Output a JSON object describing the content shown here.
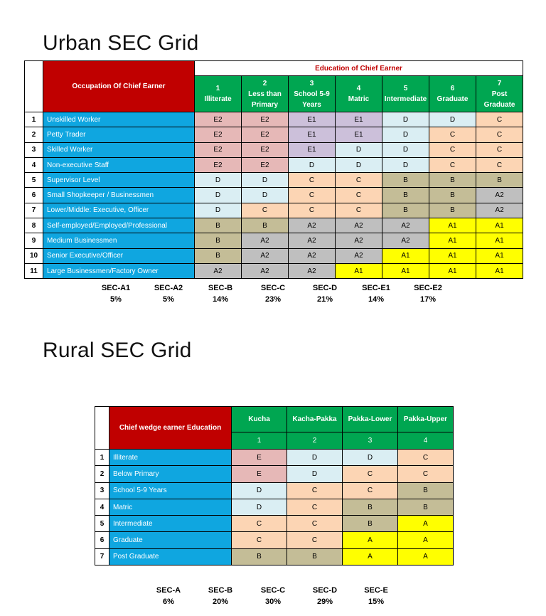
{
  "urban": {
    "title": "Urban SEC Grid",
    "occupation_header": "Occupation Of Chief Earner",
    "education_header": "Education of Chief Earner",
    "education_columns": [
      {
        "num": "1",
        "label": "Illiterate"
      },
      {
        "num": "2",
        "label": "Less than Primary"
      },
      {
        "num": "3",
        "label": "School 5-9 Years"
      },
      {
        "num": "4",
        "label": "Matric"
      },
      {
        "num": "5",
        "label": "Intermediate"
      },
      {
        "num": "6",
        "label": "Graduate"
      },
      {
        "num": "7",
        "label": "Post Graduate"
      }
    ],
    "rows": [
      {
        "num": "1",
        "occupation": "Unskilled Worker",
        "cells": [
          "E2",
          "E2",
          "E1",
          "E1",
          "D",
          "D",
          "C"
        ]
      },
      {
        "num": "2",
        "occupation": "Petty Trader",
        "cells": [
          "E2",
          "E2",
          "E1",
          "E1",
          "D",
          "C",
          "C"
        ]
      },
      {
        "num": "3",
        "occupation": "Skilled Worker",
        "cells": [
          "E2",
          "E2",
          "E1",
          "D",
          "D",
          "C",
          "C"
        ]
      },
      {
        "num": "4",
        "occupation": "Non-executive Staff",
        "cells": [
          "E2",
          "E2",
          "D",
          "D",
          "D",
          "C",
          "C"
        ]
      },
      {
        "num": "5",
        "occupation": "Supervisor Level",
        "cells": [
          "D",
          "D",
          "C",
          "C",
          "B",
          "B",
          "B"
        ]
      },
      {
        "num": "6",
        "occupation": "Small Shopkeeper / Businessmen",
        "cells": [
          "D",
          "D",
          "C",
          "C",
          "B",
          "B",
          "A2"
        ]
      },
      {
        "num": "7",
        "occupation": "Lower/Middle: Executive, Officer",
        "cells": [
          "D",
          "C",
          "C",
          "C",
          "B",
          "B",
          "A2"
        ]
      },
      {
        "num": "8",
        "occupation": "Self-employed/Employed/Professional",
        "cells": [
          "B",
          "B",
          "A2",
          "A2",
          "A2",
          "A1",
          "A1"
        ]
      },
      {
        "num": "9",
        "occupation": "Medium Businessmen",
        "cells": [
          "B",
          "A2",
          "A2",
          "A2",
          "A2",
          "A1",
          "A1"
        ]
      },
      {
        "num": "10",
        "occupation": "Senior Executive/Officer",
        "cells": [
          "B",
          "A2",
          "A2",
          "A2",
          "A1",
          "A1",
          "A1"
        ]
      },
      {
        "num": "11",
        "occupation": "Large Businessmen/Factory Owner",
        "cells": [
          "A2",
          "A2",
          "A2",
          "A1",
          "A1",
          "A1",
          "A1"
        ]
      }
    ],
    "summary": [
      {
        "label": "SEC-A1",
        "value": "5%"
      },
      {
        "label": "SEC-A2",
        "value": "5%"
      },
      {
        "label": "SEC-B",
        "value": "14%"
      },
      {
        "label": "SEC-C",
        "value": "23%"
      },
      {
        "label": "SEC-D",
        "value": "21%"
      },
      {
        "label": "SEC-E1",
        "value": "14%"
      },
      {
        "label": "SEC-E2",
        "value": "17%"
      }
    ]
  },
  "rural": {
    "title": "Rural SEC Grid",
    "education_header": "Chief wedge earner Education",
    "housing_columns": [
      {
        "num": "1",
        "label": "Kucha"
      },
      {
        "num": "2",
        "label": "Kacha-Pakka"
      },
      {
        "num": "3",
        "label": "Pakka-Lower"
      },
      {
        "num": "4",
        "label": "Pakka-Upper"
      }
    ],
    "rows": [
      {
        "num": "1",
        "education": "Illiterate",
        "cells": [
          "E",
          "D",
          "D",
          "C"
        ]
      },
      {
        "num": "2",
        "education": "Below Primary",
        "cells": [
          "E",
          "D",
          "C",
          "C"
        ]
      },
      {
        "num": "3",
        "education": "School 5-9 Years",
        "cells": [
          "D",
          "C",
          "C",
          "B"
        ]
      },
      {
        "num": "4",
        "education": "Matric",
        "cells": [
          "D",
          "C",
          "B",
          "B"
        ]
      },
      {
        "num": "5",
        "education": "Intermediate",
        "cells": [
          "C",
          "C",
          "B",
          "A"
        ]
      },
      {
        "num": "6",
        "education": "Graduate",
        "cells": [
          "C",
          "C",
          "A",
          "A"
        ]
      },
      {
        "num": "7",
        "education": "Post Graduate",
        "cells": [
          "B",
          "B",
          "A",
          "A"
        ]
      }
    ],
    "summary": [
      {
        "label": "SEC-A",
        "value": "6%"
      },
      {
        "label": "SEC-B",
        "value": "20%"
      },
      {
        "label": "SEC-C",
        "value": "30%"
      },
      {
        "label": "SEC-D",
        "value": "29%"
      },
      {
        "label": "SEC-E",
        "value": "15%"
      }
    ]
  },
  "colors": {
    "header_red": "#c00000",
    "header_green": "#00a651",
    "label_blue": "#0fa6e0",
    "E2": "#e6b8b7",
    "E1": "#ccc0da",
    "D": "#daeef3",
    "C": "#fcd5b4",
    "B": "#c4bd97",
    "A2": "#bfbfbf",
    "A1": "#ffff00"
  }
}
